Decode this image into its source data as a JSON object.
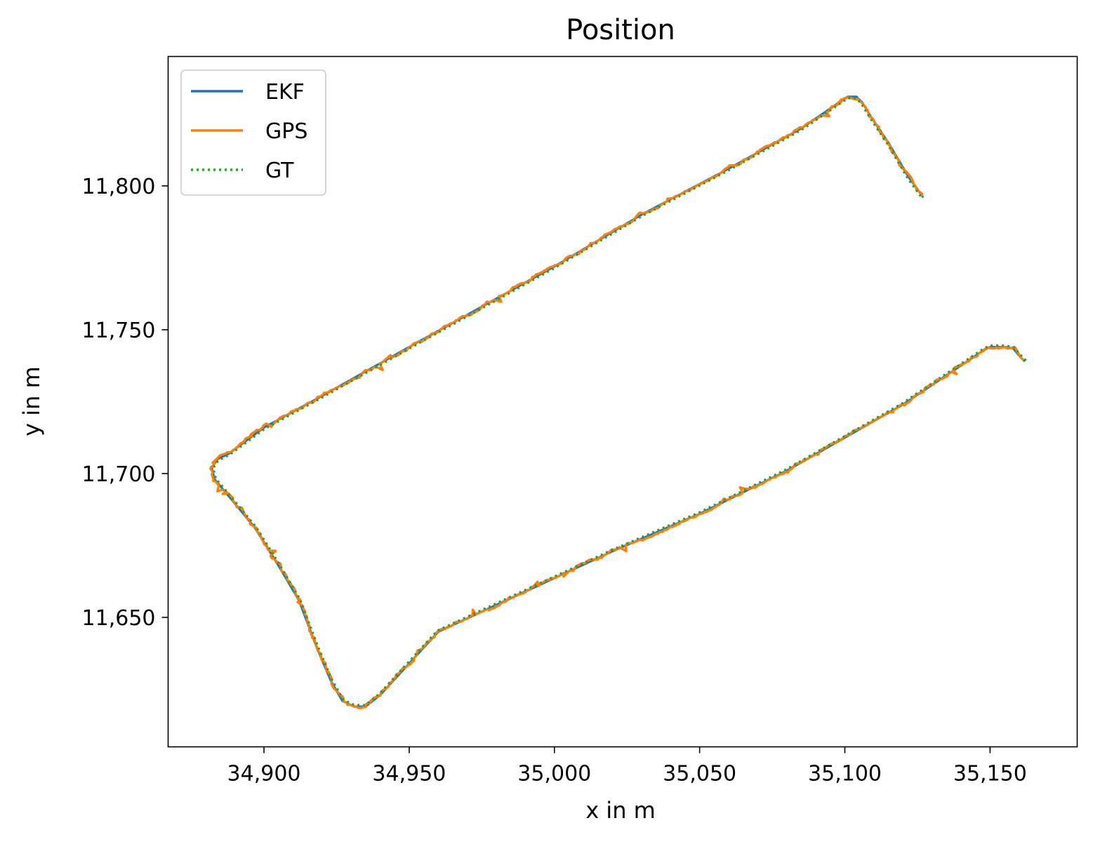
{
  "chart_data": {
    "type": "line",
    "title": "Position",
    "xlabel": "x in m",
    "ylabel": "y in m",
    "xlim": [
      34867,
      35180
    ],
    "ylim": [
      11605,
      11845
    ],
    "xticks": [
      34900,
      34950,
      35000,
      35050,
      35100,
      35150
    ],
    "xtick_labels": [
      "34,900",
      "34,950",
      "35,000",
      "35,050",
      "35,100",
      "35,150"
    ],
    "yticks": [
      11650,
      11700,
      11750,
      11800
    ],
    "ytick_labels": [
      "11,650",
      "11,700",
      "11,750",
      "11,800"
    ],
    "grid": false,
    "legend_position": "top-left",
    "colors": {
      "EKF": "#1f77b4",
      "GPS": "#ff7f0e",
      "GT": "#2ca02c"
    },
    "series": [
      {
        "name": "EKF",
        "style": "solid"
      },
      {
        "name": "GPS",
        "style": "solid-noisy"
      },
      {
        "name": "GT",
        "style": "dotted"
      }
    ],
    "path": [
      [
        35162,
        11739
      ],
      [
        35160,
        11741
      ],
      [
        35158,
        11743.5
      ],
      [
        35155,
        11744
      ],
      [
        35150,
        11744
      ],
      [
        35148,
        11743
      ],
      [
        35120,
        11724
      ],
      [
        35080,
        11701
      ],
      [
        35050,
        11686
      ],
      [
        35020,
        11673
      ],
      [
        34990,
        11659
      ],
      [
        34960,
        11645
      ],
      [
        34940,
        11623
      ],
      [
        34935,
        11619
      ],
      [
        34931,
        11619
      ],
      [
        34927,
        11621
      ],
      [
        34923,
        11628
      ],
      [
        34918,
        11640
      ],
      [
        34912,
        11656
      ],
      [
        34905,
        11668
      ],
      [
        34897,
        11681
      ],
      [
        34888,
        11692
      ],
      [
        34883,
        11698
      ],
      [
        34882,
        11702
      ],
      [
        34884,
        11705
      ],
      [
        34888,
        11707
      ],
      [
        34900,
        11716
      ],
      [
        34920,
        11727
      ],
      [
        34950,
        11744
      ],
      [
        34975,
        11758
      ],
      [
        35000,
        11772
      ],
      [
        35030,
        11790
      ],
      [
        35060,
        11806
      ],
      [
        35085,
        11820
      ],
      [
        35098,
        11829
      ],
      [
        35101,
        11831
      ],
      [
        35104,
        11831
      ],
      [
        35106,
        11829
      ],
      [
        35109,
        11824
      ],
      [
        35115,
        11815
      ],
      [
        35122,
        11803
      ],
      [
        35127,
        11796
      ]
    ]
  }
}
